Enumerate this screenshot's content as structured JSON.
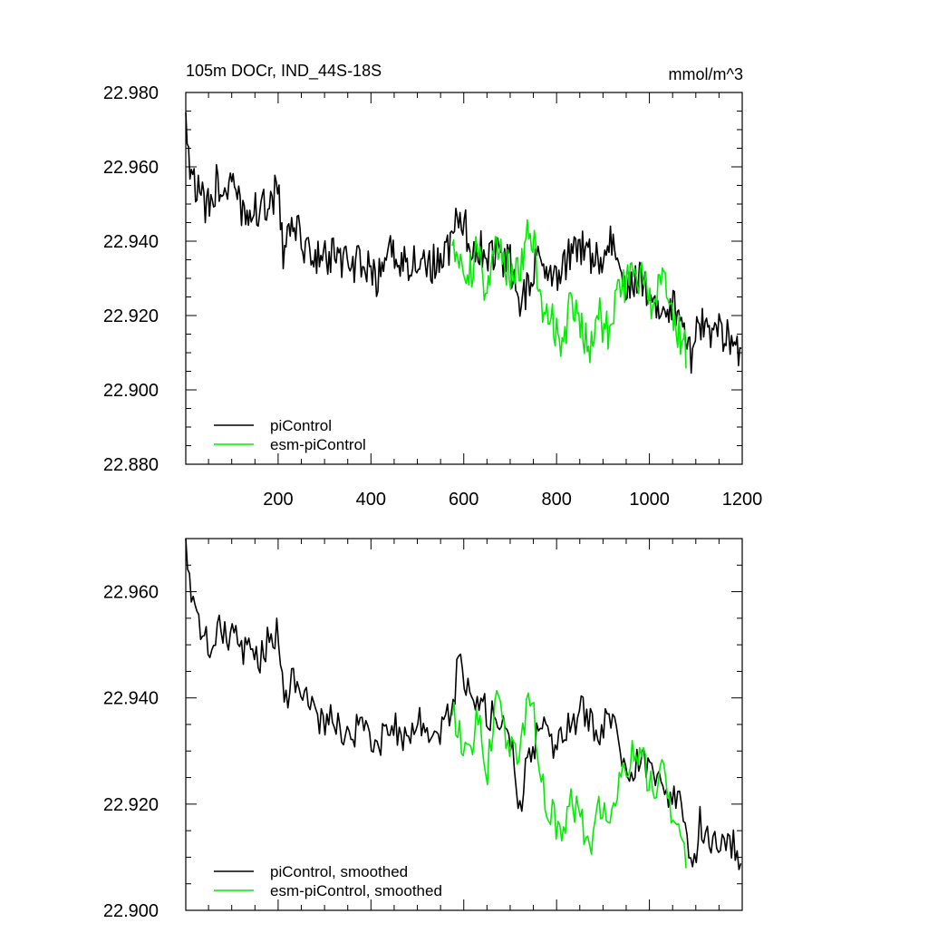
{
  "chart_data": [
    {
      "type": "line",
      "title": "105m DOCr, IND_44S-18S",
      "units": "mmol/m^3",
      "xlim": [
        1,
        1200
      ],
      "ylim": [
        22.88,
        22.98
      ],
      "xticks": [
        200,
        400,
        600,
        800,
        1000,
        1200
      ],
      "xtick_labels": [
        "200",
        "400",
        "600",
        "800",
        "1000",
        "1200"
      ],
      "yticks": [
        22.88,
        22.9,
        22.92,
        22.94,
        22.96,
        22.98
      ],
      "ytick_labels": [
        "22.880",
        "22.900",
        "22.920",
        "22.940",
        "22.960",
        "22.980"
      ],
      "legend_position": "bottom-left",
      "series": [
        {
          "name": "piControl",
          "color": "#000000",
          "x": [
            1,
            10,
            25,
            40,
            55,
            70,
            85,
            100,
            120,
            140,
            160,
            180,
            200,
            210,
            230,
            260,
            290,
            320,
            350,
            380,
            410,
            440,
            470,
            500,
            530,
            560,
            575,
            590,
            610,
            640,
            670,
            700,
            720,
            740,
            770,
            800,
            830,
            860,
            890,
            920,
            950,
            980,
            1010,
            1040,
            1070,
            1090,
            1110,
            1130,
            1150,
            1170,
            1190,
            1200
          ],
          "values": [
            22.972,
            22.962,
            22.954,
            22.95,
            22.948,
            22.957,
            22.953,
            22.955,
            22.948,
            22.95,
            22.947,
            22.951,
            22.954,
            22.937,
            22.944,
            22.939,
            22.935,
            22.936,
            22.933,
            22.935,
            22.929,
            22.937,
            22.934,
            22.936,
            22.933,
            22.937,
            22.94,
            22.948,
            22.941,
            22.938,
            22.936,
            22.934,
            22.92,
            22.93,
            22.936,
            22.932,
            22.936,
            22.938,
            22.934,
            22.94,
            22.928,
            22.93,
            22.925,
            22.922,
            22.921,
            22.91,
            22.918,
            22.914,
            22.916,
            22.914,
            22.912,
            22.907
          ]
        },
        {
          "name": "esm-piControl",
          "color": "#00ee00",
          "x": [
            575,
            590,
            610,
            630,
            650,
            670,
            690,
            710,
            730,
            745,
            760,
            775,
            790,
            810,
            830,
            850,
            870,
            890,
            910,
            930,
            950,
            970,
            990,
            1010,
            1030,
            1050,
            1070,
            1080
          ],
          "values": [
            22.94,
            22.935,
            22.93,
            22.938,
            22.926,
            22.942,
            22.934,
            22.929,
            22.937,
            22.944,
            22.93,
            22.92,
            22.918,
            22.912,
            22.922,
            22.918,
            22.912,
            22.92,
            22.916,
            22.924,
            22.928,
            22.932,
            22.928,
            22.922,
            22.93,
            22.918,
            22.914,
            22.91
          ]
        }
      ]
    },
    {
      "type": "line",
      "title": "",
      "xlim": [
        1,
        1200
      ],
      "ylim": [
        22.9,
        22.97
      ],
      "yticks": [
        22.9,
        22.92,
        22.94,
        22.96
      ],
      "ytick_labels": [
        "22.900",
        "22.920",
        "22.940",
        "22.960"
      ],
      "legend_position": "bottom-left",
      "series": [
        {
          "name": "piControl, smoothed",
          "color": "#000000",
          "x": [
            1,
            15,
            30,
            45,
            60,
            75,
            90,
            105,
            120,
            140,
            160,
            180,
            200,
            215,
            230,
            260,
            290,
            320,
            350,
            380,
            410,
            440,
            470,
            500,
            530,
            560,
            575,
            590,
            610,
            640,
            670,
            700,
            720,
            740,
            770,
            800,
            830,
            860,
            890,
            920,
            950,
            980,
            1010,
            1040,
            1070,
            1090,
            1110,
            1130,
            1150,
            1170,
            1190,
            1200
          ],
          "values": [
            22.968,
            22.96,
            22.955,
            22.951,
            22.947,
            22.955,
            22.951,
            22.954,
            22.948,
            22.95,
            22.947,
            22.951,
            22.952,
            22.938,
            22.944,
            22.941,
            22.935,
            22.936,
            22.932,
            22.935,
            22.929,
            22.936,
            22.933,
            22.936,
            22.933,
            22.935,
            22.938,
            22.948,
            22.941,
            22.938,
            22.936,
            22.934,
            22.918,
            22.93,
            22.934,
            22.93,
            22.935,
            22.938,
            22.933,
            22.938,
            22.926,
            22.929,
            22.924,
            22.922,
            22.92,
            22.906,
            22.917,
            22.913,
            22.914,
            22.913,
            22.912,
            22.908
          ]
        },
        {
          "name": "esm-piControl, smoothed",
          "color": "#00ee00",
          "x": [
            575,
            590,
            610,
            630,
            650,
            670,
            690,
            710,
            730,
            745,
            760,
            775,
            790,
            810,
            830,
            850,
            870,
            890,
            910,
            930,
            950,
            970,
            990,
            1010,
            1030,
            1050,
            1070,
            1080
          ],
          "values": [
            22.939,
            22.933,
            22.929,
            22.936,
            22.926,
            22.94,
            22.933,
            22.928,
            22.935,
            22.941,
            22.929,
            22.921,
            22.918,
            22.913,
            22.921,
            22.918,
            22.912,
            22.919,
            22.916,
            22.923,
            22.927,
            22.931,
            22.927,
            22.921,
            22.928,
            22.917,
            22.913,
            22.909
          ]
        }
      ]
    }
  ]
}
